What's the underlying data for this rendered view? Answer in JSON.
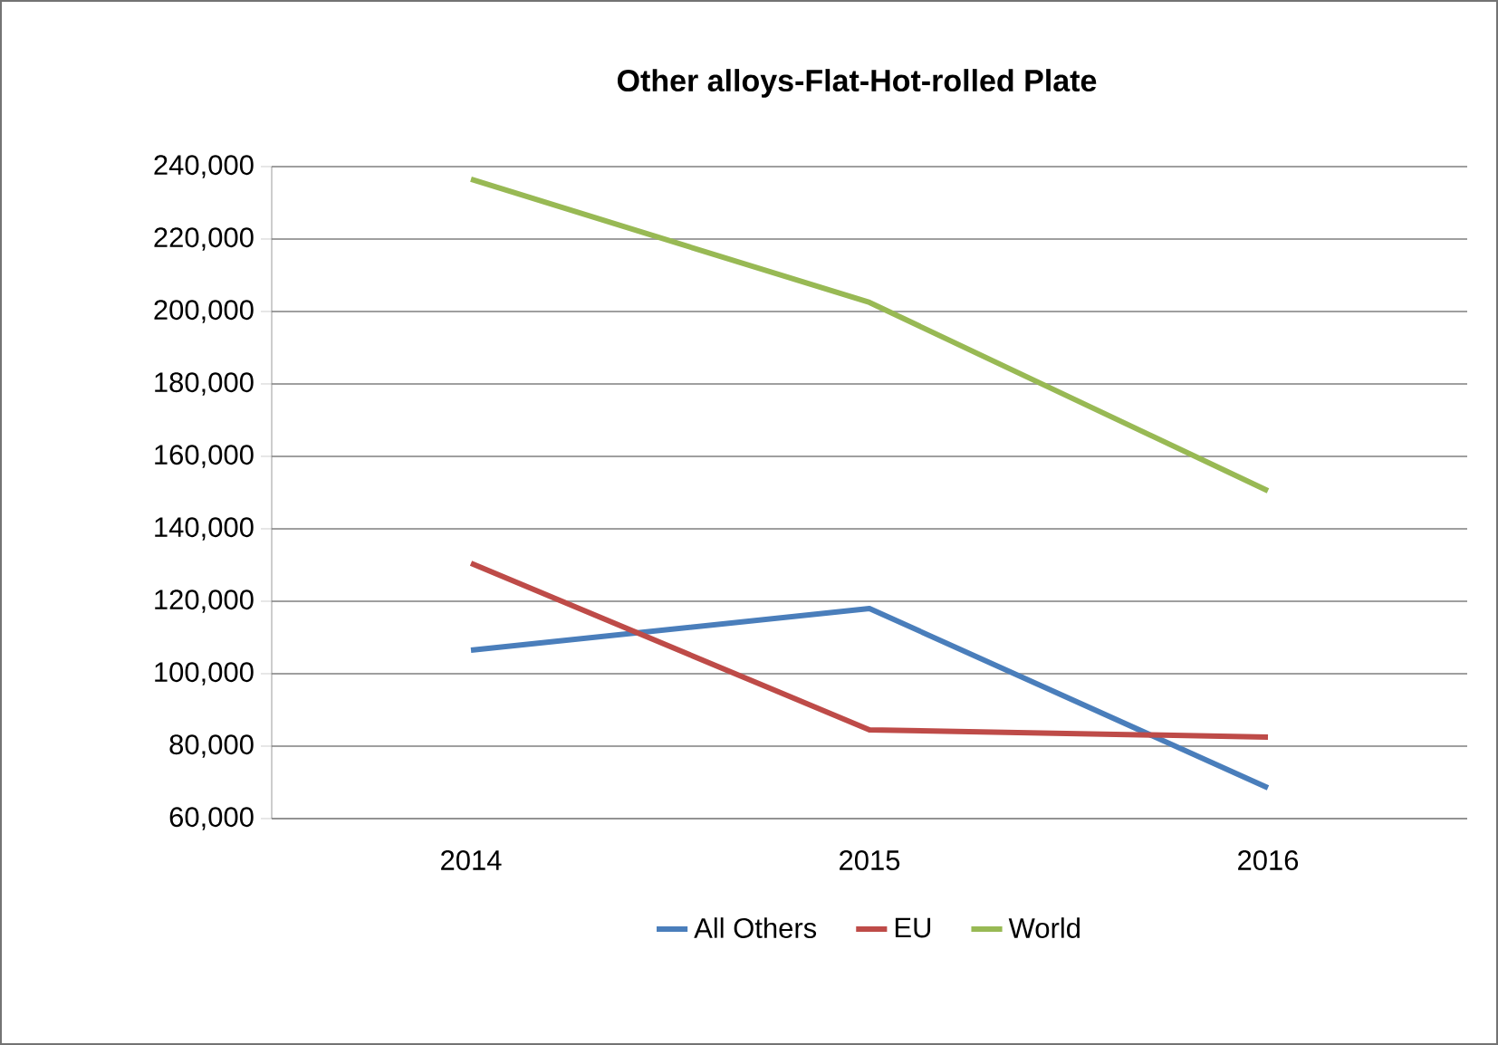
{
  "chart_data": {
    "type": "line",
    "title": "Other alloys-Flat-Hot-rolled Plate",
    "categories": [
      "2014",
      "2015",
      "2016"
    ],
    "series": [
      {
        "name": "All Others",
        "color": "#4a7ebb",
        "values": [
          106500,
          118000,
          68500
        ]
      },
      {
        "name": "EU",
        "color": "#be4b48",
        "values": [
          130500,
          84500,
          82500
        ]
      },
      {
        "name": "World",
        "color": "#98b954",
        "values": [
          236500,
          202500,
          150500
        ]
      }
    ],
    "ylim": [
      60000,
      240000
    ],
    "yticks": [
      {
        "value": 60000,
        "label": "60,000"
      },
      {
        "value": 80000,
        "label": "80,000"
      },
      {
        "value": 100000,
        "label": "100,000"
      },
      {
        "value": 120000,
        "label": "120,000"
      },
      {
        "value": 140000,
        "label": "140,000"
      },
      {
        "value": 160000,
        "label": "160,000"
      },
      {
        "value": 180000,
        "label": "180,000"
      },
      {
        "value": 200000,
        "label": "200,000"
      },
      {
        "value": 220000,
        "label": "220,000"
      },
      {
        "value": 240000,
        "label": "240,000"
      }
    ],
    "grid": "y",
    "legend": "bottom",
    "marker": "none",
    "line_style": "solid"
  }
}
